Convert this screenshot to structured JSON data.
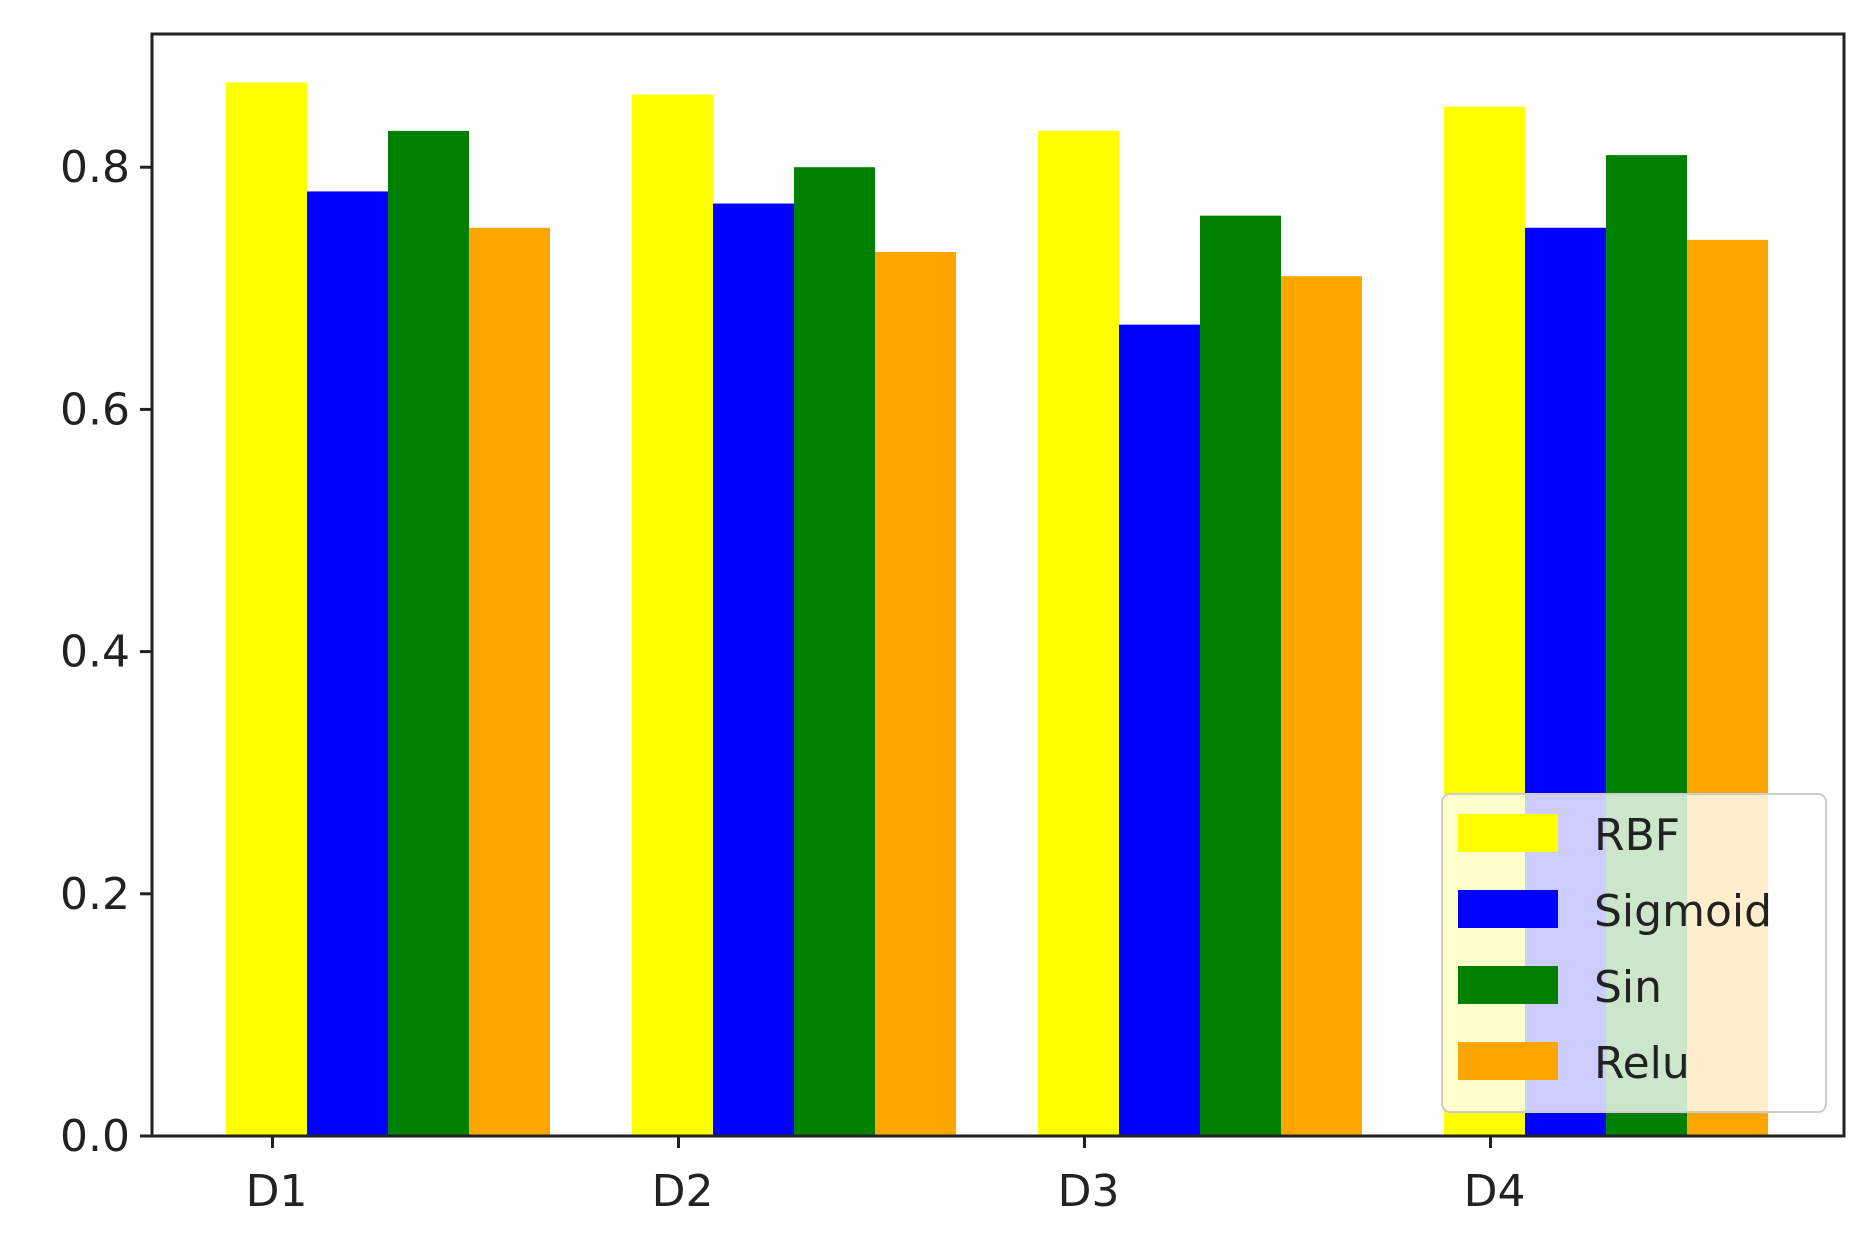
{
  "chart_data": {
    "type": "bar",
    "categories": [
      "D1",
      "D2",
      "D3",
      "D4"
    ],
    "series": [
      {
        "name": "RBF",
        "color": "#ffff00",
        "values": [
          0.87,
          0.86,
          0.83,
          0.85
        ]
      },
      {
        "name": "Sigmoid",
        "color": "#0000ff",
        "values": [
          0.78,
          0.77,
          0.67,
          0.75
        ]
      },
      {
        "name": "Sin",
        "color": "#008000",
        "values": [
          0.83,
          0.8,
          0.76,
          0.81
        ]
      },
      {
        "name": "Relu",
        "color": "#ffa500",
        "values": [
          0.75,
          0.73,
          0.71,
          0.74
        ]
      }
    ],
    "ylim": [
      0,
      0.91
    ],
    "yticks": [
      0.0,
      0.2,
      0.4,
      0.6,
      0.8
    ],
    "ytick_labels": [
      "0.0",
      "0.2",
      "0.4",
      "0.6",
      "0.8"
    ],
    "title": "",
    "xlabel": "",
    "ylabel": "",
    "grid": false,
    "legend_position": "lower-right"
  }
}
